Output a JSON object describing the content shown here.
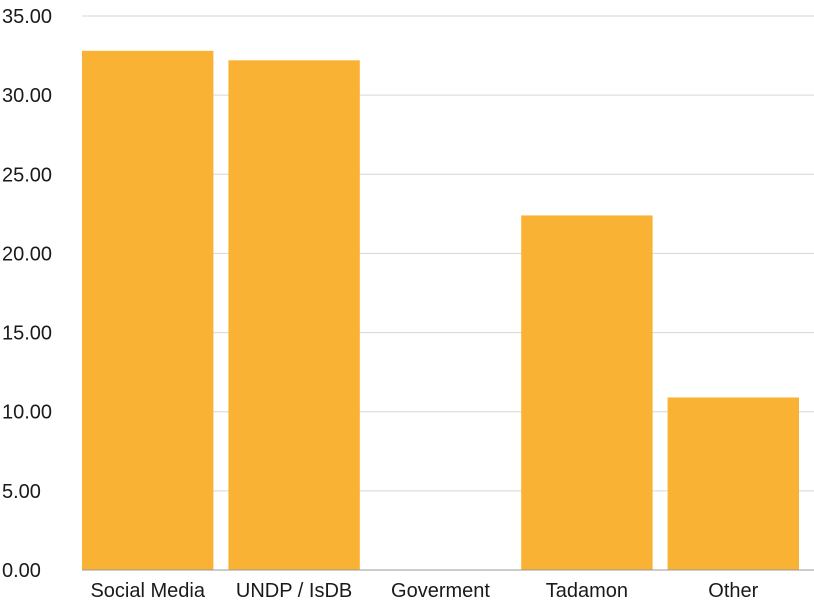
{
  "chart_data": {
    "type": "bar",
    "categories": [
      "Social Media",
      "UNDP / IsDB",
      "Goverment",
      "Tadamon",
      "Other"
    ],
    "values": [
      32.8,
      32.2,
      0,
      22.4,
      10.9
    ],
    "ylim": [
      0,
      35
    ],
    "yticks": [
      "0.00",
      "5.00",
      "10.00",
      "15.00",
      "20.00",
      "25.00",
      "30.00",
      "35.00"
    ],
    "grid": true,
    "bar_color": "#F9B233",
    "title": "",
    "xlabel": "",
    "ylabel": ""
  }
}
